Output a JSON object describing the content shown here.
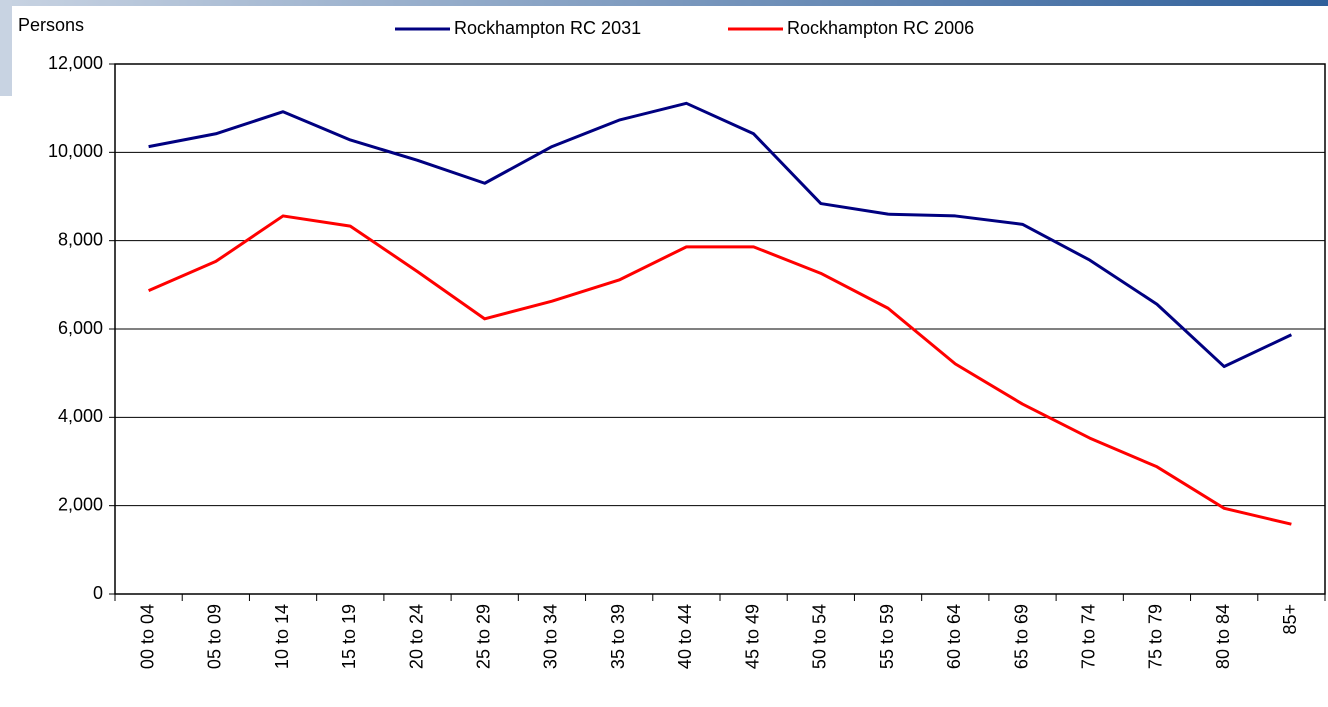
{
  "chart_data": {
    "type": "line",
    "y_label": "Persons",
    "categories": [
      "00 to 04",
      "05 to 09",
      "10 to 14",
      "15 to 19",
      "20 to 24",
      "25 to 29",
      "30 to 34",
      "35 to 39",
      "40 to 44",
      "45 to 49",
      "50 to 54",
      "55 to 59",
      "60 to 64",
      "65 to 69",
      "70 to 74",
      "75 to 79",
      "80 to 84",
      "85+"
    ],
    "series": [
      {
        "name": "Rockhampton RC 2031",
        "color": "#000080",
        "values": [
          10130,
          10420,
          10920,
          10280,
          9820,
          9300,
          10130,
          10730,
          11110,
          10420,
          8840,
          8600,
          8560,
          8370,
          7560,
          6560,
          5150,
          5870
        ]
      },
      {
        "name": "Rockhampton RC 2006",
        "color": "#ff0000",
        "values": [
          6870,
          7530,
          8560,
          8330,
          7300,
          6230,
          6630,
          7110,
          7860,
          7860,
          7260,
          6470,
          5210,
          4300,
          3530,
          2880,
          1940,
          1580
        ]
      }
    ],
    "ylim": [
      0,
      12000
    ],
    "yticks": [
      0,
      {
        "value": 2000,
        "label": "2,000"
      },
      {
        "value": 4000,
        "label": "4,000"
      },
      {
        "value": 6000,
        "label": "6,000"
      },
      {
        "value": 8000,
        "label": "8,000"
      },
      {
        "value": 10000,
        "label": "10,000"
      },
      {
        "value": 12000,
        "label": "12,000"
      }
    ],
    "grid": true,
    "legend": "top"
  }
}
